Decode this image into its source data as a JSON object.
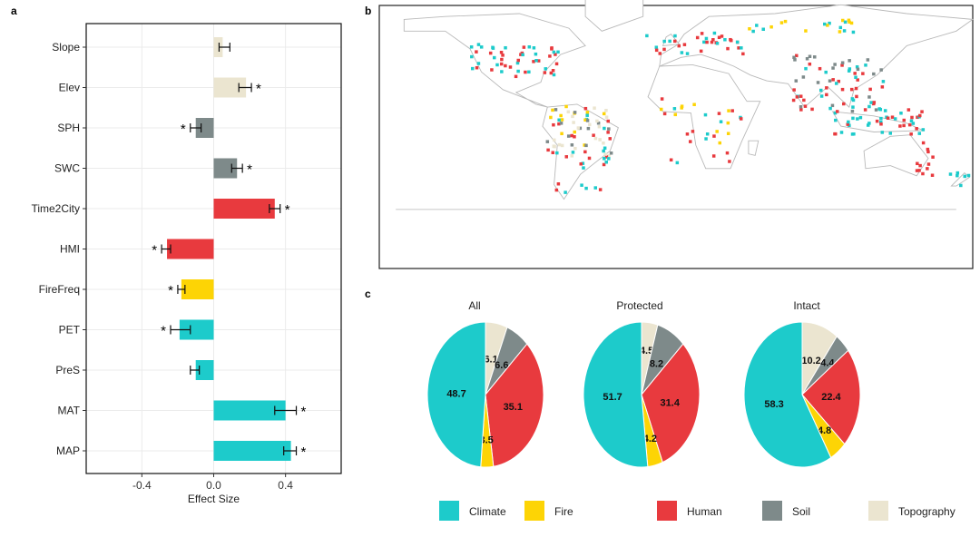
{
  "panels": {
    "a": "a",
    "b": "b",
    "c": "c"
  },
  "colors": {
    "Climate": "#1dcbcb",
    "Fire": "#fdd405",
    "Human": "#e83a3e",
    "Soil": "#7e8a8a",
    "Topography": "#ebe5d0"
  },
  "chart_data": [
    {
      "type": "bar",
      "orientation": "horizontal",
      "panel": "a",
      "xlabel": "Effect Size",
      "ylabel": "",
      "xlim": [
        -0.71,
        0.71
      ],
      "xticks": [
        "-0.4",
        "0.0",
        "0.4"
      ],
      "xtick_values": [
        -0.4,
        0.0,
        0.4
      ],
      "grid": true,
      "categories": [
        "Slope",
        "Elev",
        "SPH",
        "SWC",
        "Time2City",
        "HMI",
        "FireFreq",
        "PET",
        "PreS",
        "MAT",
        "MAP"
      ],
      "values": [
        0.05,
        0.18,
        -0.1,
        0.13,
        0.34,
        -0.26,
        -0.18,
        -0.19,
        -0.1,
        0.4,
        0.43
      ],
      "error_low": [
        0.03,
        0.14,
        -0.13,
        0.1,
        0.31,
        -0.29,
        -0.2,
        -0.24,
        -0.13,
        0.34,
        0.39
      ],
      "error_high": [
        0.09,
        0.21,
        -0.07,
        0.16,
        0.37,
        -0.24,
        -0.16,
        -0.13,
        -0.08,
        0.46,
        0.46
      ],
      "significant": [
        false,
        true,
        true,
        true,
        true,
        true,
        true,
        true,
        false,
        true,
        true
      ],
      "significance_mark": "*",
      "group": [
        "Topography",
        "Topography",
        "Soil",
        "Soil",
        "Human",
        "Human",
        "Fire",
        "Climate",
        "Climate",
        "Climate",
        "Climate"
      ]
    },
    {
      "type": "pie",
      "panel": "c",
      "legend": [
        "Climate",
        "Fire",
        "Human",
        "Soil",
        "Topography"
      ],
      "legend_placement": "bottom",
      "slice_order_clockwise_from_top": [
        "Topography",
        "Soil",
        "Human",
        "Fire",
        "Climate"
      ],
      "pies": [
        {
          "title": "All",
          "values": {
            "Topography": 6.1,
            "Soil": 6.6,
            "Human": 35.1,
            "Fire": 3.5,
            "Climate": 48.7
          }
        },
        {
          "title": "Protected",
          "values": {
            "Topography": 4.5,
            "Soil": 8.2,
            "Human": 31.4,
            "Fire": 4.2,
            "Climate": 51.7
          }
        },
        {
          "title": "Intact",
          "values": {
            "Topography": 10.2,
            "Soil": 4.4,
            "Human": 22.4,
            "Fire": 4.8,
            "Climate": 58.3
          }
        }
      ]
    }
  ]
}
